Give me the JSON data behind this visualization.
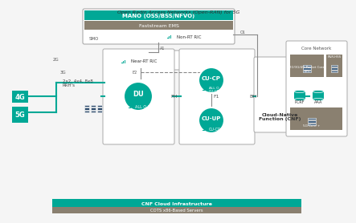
{
  "bg_color": "#f5f5f5",
  "teal": "#00a896",
  "dark_teal": "#008080",
  "gray": "#8a8070",
  "light_gray": "#d0cdc8",
  "box_bg": "#ffffff",
  "dark_blue": "#2d4a6b",
  "title": "Open Radio Access Networks (Open-RAN) for 5G",
  "mano_title": "MANO (OSS/BSS/NFVO)",
  "ems_label": "Faststream EMS",
  "smo_label": "SMO",
  "non_rt_label": "Non-RT RIC",
  "near_rt_label": "Near-RT RIC",
  "du_label": "DU",
  "cu_cp_label": "CU-CP",
  "cu_up_label": "CU-UP",
  "cnf_label": "Cloud-Native\nFunction (CNF)",
  "core_label": "Core Network",
  "cnf_infra_label": "CNF Cloud Infrastructure",
  "cots_label": "COTS x86-Based Servers",
  "fh_label": "FH",
  "f1_label": "F1",
  "bh_label": "BH",
  "a1_label": "A1",
  "o1_label": "O1",
  "e2_label": "E2",
  "rrh_label": "2x2, 4x4, 8x8\nRRH's",
  "all_o_du": "ALL O-DU",
  "all_o_cu_cp_cnf": "ALL O\nCU-CP-CNF",
  "all_o_cu_cp2": "CU-CP",
  "five_g_label": "5G",
  "four_g_label": "4G",
  "pcrf_label": "PCRF",
  "aaa_label": "AAA",
  "pcr_hss_label": "P&R-HSS",
  "five_g_core_label": "5G Core +",
  "pkt_core_label": "2G/3G/4G Packet Core\nEPC"
}
